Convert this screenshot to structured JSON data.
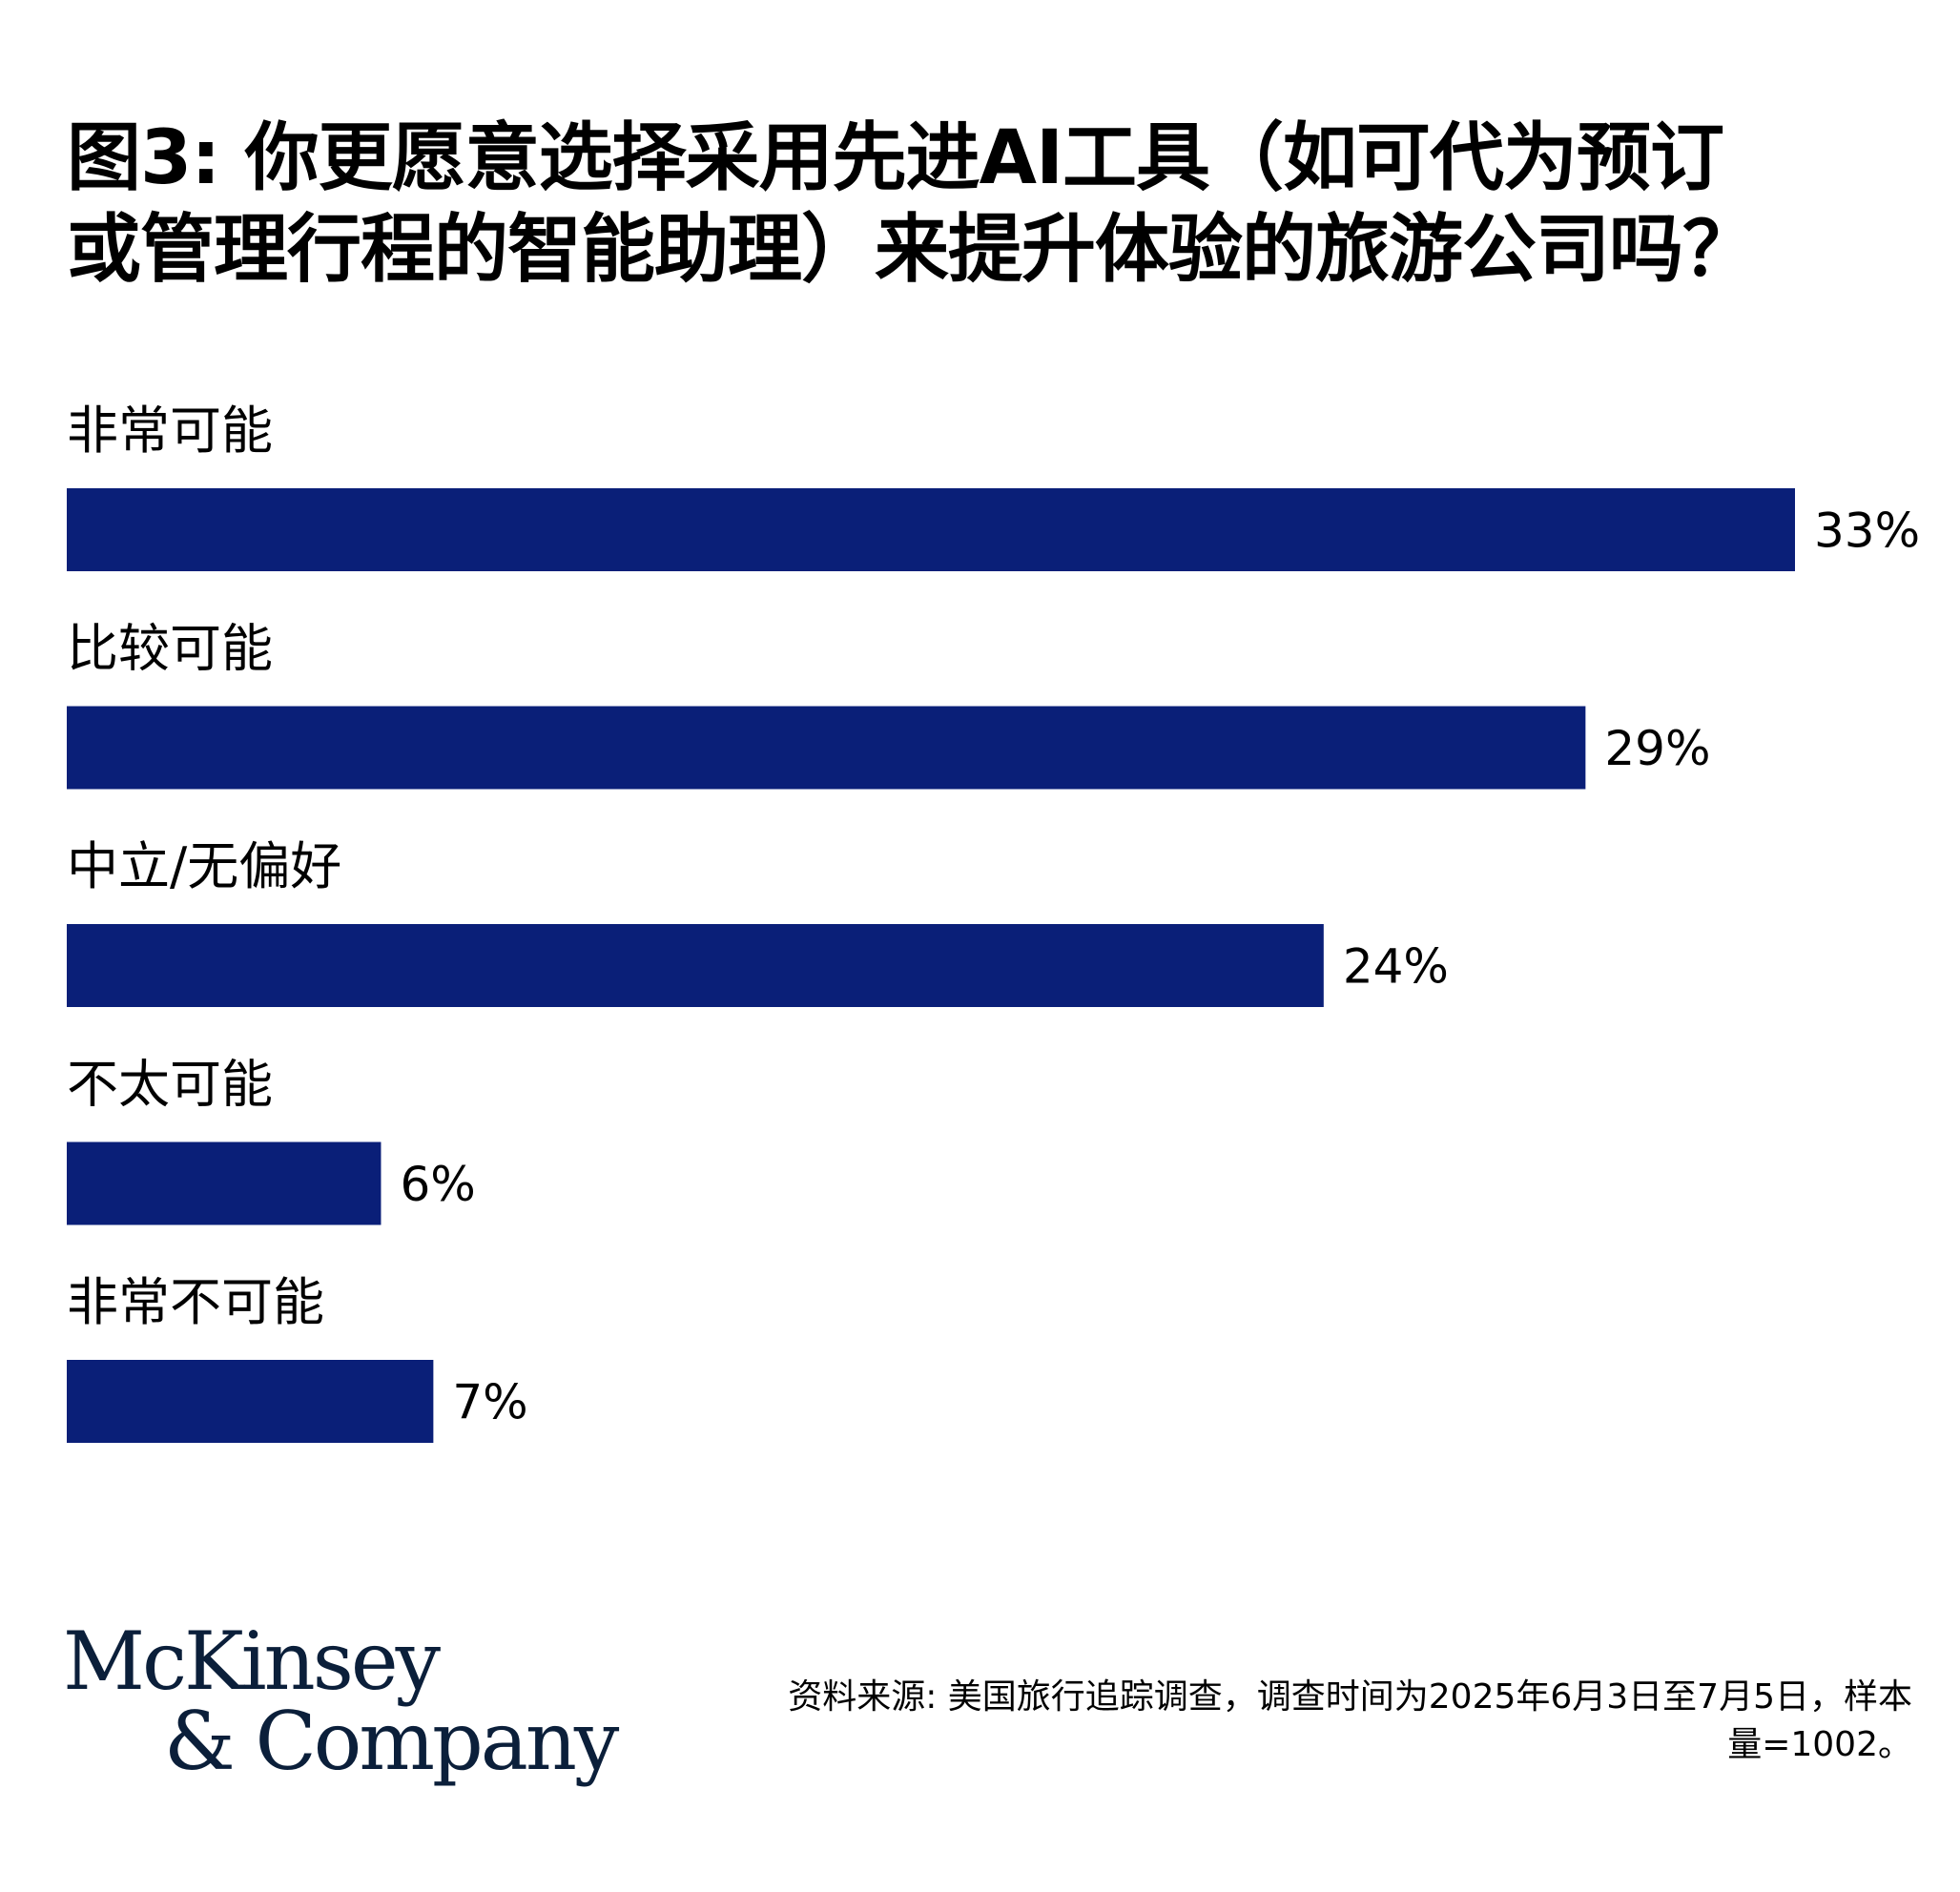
{
  "title_lines": [
    "图3: 你更愿意选择采用先进AI工具（如可代为预订",
    "或管理行程的智能助理）来提升体验的旅游公司吗？"
  ],
  "colors": {
    "bar": "#0a1f78",
    "logo": "#0b1f3a"
  },
  "chart_data": {
    "type": "bar",
    "orientation": "horizontal",
    "categories": [
      "非常可能",
      "比较可能",
      "中立/无偏好",
      "不太可能",
      "非常不可能"
    ],
    "values": [
      33,
      29,
      24,
      6,
      7
    ],
    "value_labels": [
      "33%",
      "29%",
      "24%",
      "6%",
      "7%"
    ],
    "unit": "%",
    "xlim": [
      0,
      33
    ],
    "grid": false,
    "legend": "none"
  },
  "logo": {
    "line1": "McKinsey",
    "line2": "& Company"
  },
  "source": {
    "line1": "资料来源: 美国旅行追踪调查，调查时间为2025年6月3日至7月5日，样本",
    "line2": "量=1002。"
  }
}
